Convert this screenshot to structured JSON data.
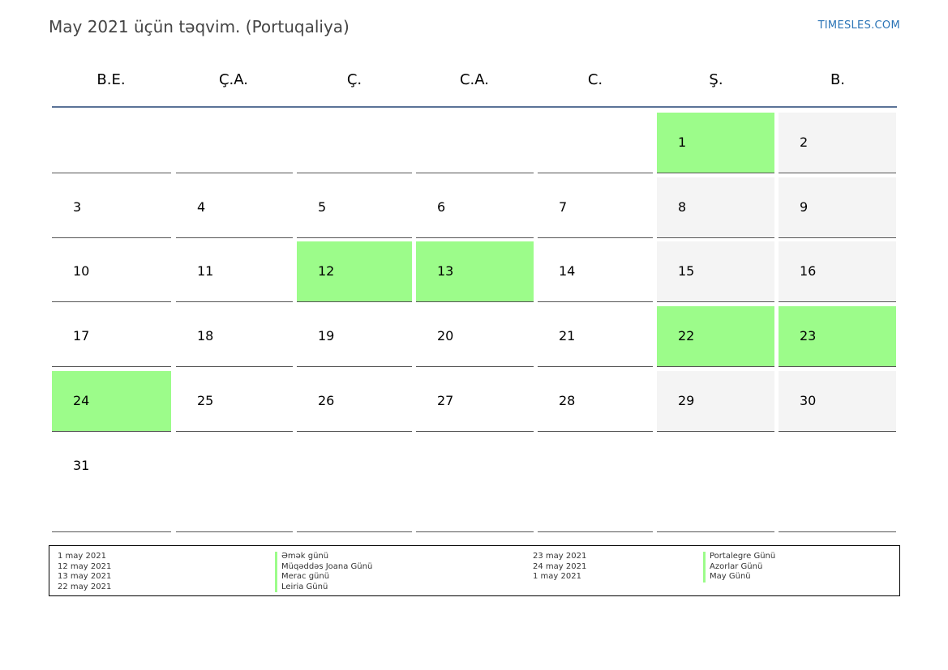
{
  "title": "May 2021 üçün təqvim. (Portuqaliya)",
  "brand": "TIMESLES.COM",
  "colors": {
    "holiday": "#9cfc8a",
    "weekend": "#f4f4f4",
    "header_line": "#5b7397",
    "brand": "#2b74b6"
  },
  "weekdays": [
    "B.E.",
    "Ç.A.",
    "Ç.",
    "C.A.",
    "C.",
    "Ş.",
    "B."
  ],
  "weeks": [
    [
      {
        "d": ""
      },
      {
        "d": ""
      },
      {
        "d": ""
      },
      {
        "d": ""
      },
      {
        "d": ""
      },
      {
        "d": "1",
        "s": "holiday"
      },
      {
        "d": "2",
        "s": "weekend"
      }
    ],
    [
      {
        "d": "3"
      },
      {
        "d": "4"
      },
      {
        "d": "5"
      },
      {
        "d": "6"
      },
      {
        "d": "7"
      },
      {
        "d": "8",
        "s": "weekend"
      },
      {
        "d": "9",
        "s": "weekend"
      }
    ],
    [
      {
        "d": "10"
      },
      {
        "d": "11"
      },
      {
        "d": "12",
        "s": "holiday"
      },
      {
        "d": "13",
        "s": "holiday"
      },
      {
        "d": "14"
      },
      {
        "d": "15",
        "s": "weekend"
      },
      {
        "d": "16",
        "s": "weekend"
      }
    ],
    [
      {
        "d": "17"
      },
      {
        "d": "18"
      },
      {
        "d": "19"
      },
      {
        "d": "20"
      },
      {
        "d": "21"
      },
      {
        "d": "22",
        "s": "holiday"
      },
      {
        "d": "23",
        "s": "holiday"
      }
    ],
    [
      {
        "d": "24",
        "s": "holiday"
      },
      {
        "d": "25"
      },
      {
        "d": "26"
      },
      {
        "d": "27"
      },
      {
        "d": "28"
      },
      {
        "d": "29",
        "s": "weekend"
      },
      {
        "d": "30",
        "s": "weekend"
      }
    ],
    [
      {
        "d": "31"
      },
      {
        "d": ""
      },
      {
        "d": ""
      },
      {
        "d": ""
      },
      {
        "d": ""
      },
      {
        "d": ""
      },
      {
        "d": ""
      }
    ]
  ],
  "legend": {
    "col1_dates": [
      "1 may 2021",
      "12 may 2021",
      "13 may 2021",
      "22 may 2021"
    ],
    "col1_names": [
      "Əmək günü",
      "Müqəddəs Joana Günü",
      "Merac günü",
      "Leiria Günü"
    ],
    "col2_dates": [
      "23 may 2021",
      "24 may 2021",
      "1 may 2021"
    ],
    "col2_names": [
      "Portalegre Günü",
      "Azorlar Günü",
      "May Günü"
    ]
  }
}
